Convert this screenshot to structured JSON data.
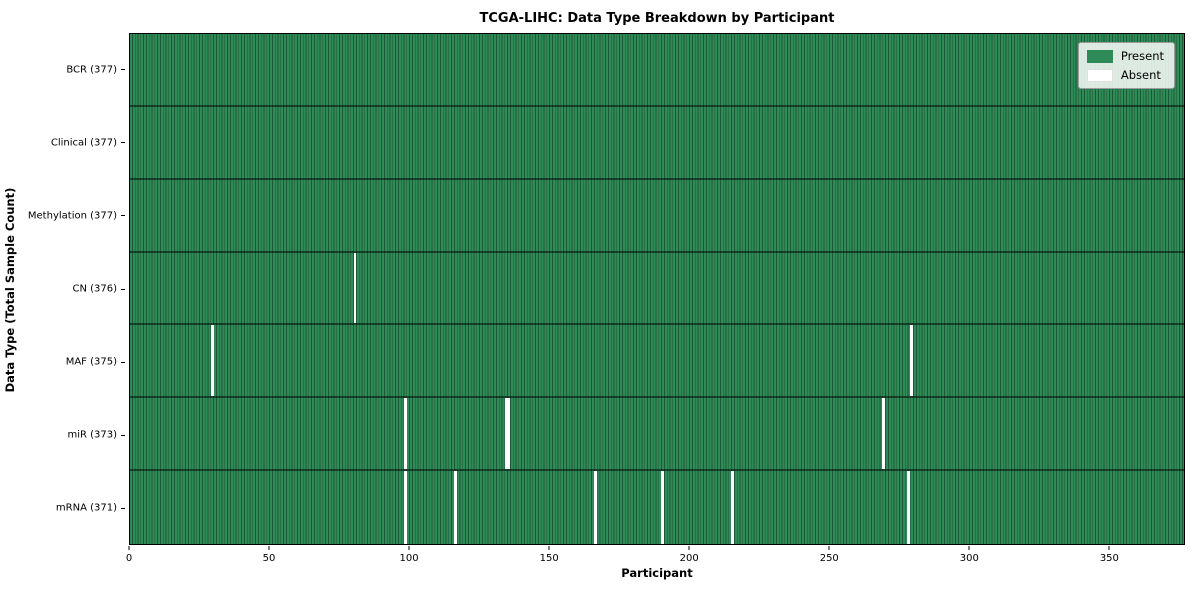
{
  "title": "TCGA-LIHC: Data Type Breakdown by Participant",
  "x_axis_label": "Participant",
  "y_axis_label": "Data Type (Total Sample Count)",
  "legend": {
    "present_label": "Present",
    "absent_label": "Absent"
  },
  "colors": {
    "present": "#2e8b57",
    "absent": "#ffffff",
    "cell_edge": "#1d5936",
    "row_divider": "rgba(0,0,0,0.5)",
    "figure_background": "#ffffff",
    "text": "#000000"
  },
  "chart_data": {
    "type": "heatmap",
    "title": "TCGA-LIHC: Data Type Breakdown by Participant",
    "xlabel": "Participant",
    "ylabel": "Data Type (Total Sample Count)",
    "n_participants": 377,
    "x_ticks": [
      0,
      50,
      100,
      150,
      200,
      250,
      300,
      350
    ],
    "x_range": [
      0,
      377
    ],
    "legend_entries": [
      {
        "label": "Present",
        "color": "#2e8b57"
      },
      {
        "label": "Absent",
        "color": "#ffffff"
      }
    ],
    "legend_position": "upper right",
    "grid": false,
    "rows": [
      {
        "data_type": "BCR",
        "label": "BCR (377)",
        "total_samples": 377,
        "absent_count": 0,
        "absent_participants": []
      },
      {
        "data_type": "Clinical",
        "label": "Clinical (377)",
        "total_samples": 377,
        "absent_count": 0,
        "absent_participants": []
      },
      {
        "data_type": "Methylation",
        "label": "Methylation (377)",
        "total_samples": 377,
        "absent_count": 0,
        "absent_participants": []
      },
      {
        "data_type": "CN",
        "label": "CN (376)",
        "total_samples": 376,
        "absent_count": 1,
        "absent_participants": [
          80
        ]
      },
      {
        "data_type": "MAF",
        "label": "MAF (375)",
        "total_samples": 375,
        "absent_count": 2,
        "absent_participants": [
          29,
          279
        ]
      },
      {
        "data_type": "miR",
        "label": "miR (373)",
        "total_samples": 373,
        "absent_count": 4,
        "absent_participants": [
          98,
          134,
          135,
          269
        ]
      },
      {
        "data_type": "mRNA",
        "label": "mRNA (371)",
        "total_samples": 371,
        "absent_count": 6,
        "absent_participants": [
          98,
          116,
          166,
          190,
          215,
          278
        ]
      }
    ]
  }
}
